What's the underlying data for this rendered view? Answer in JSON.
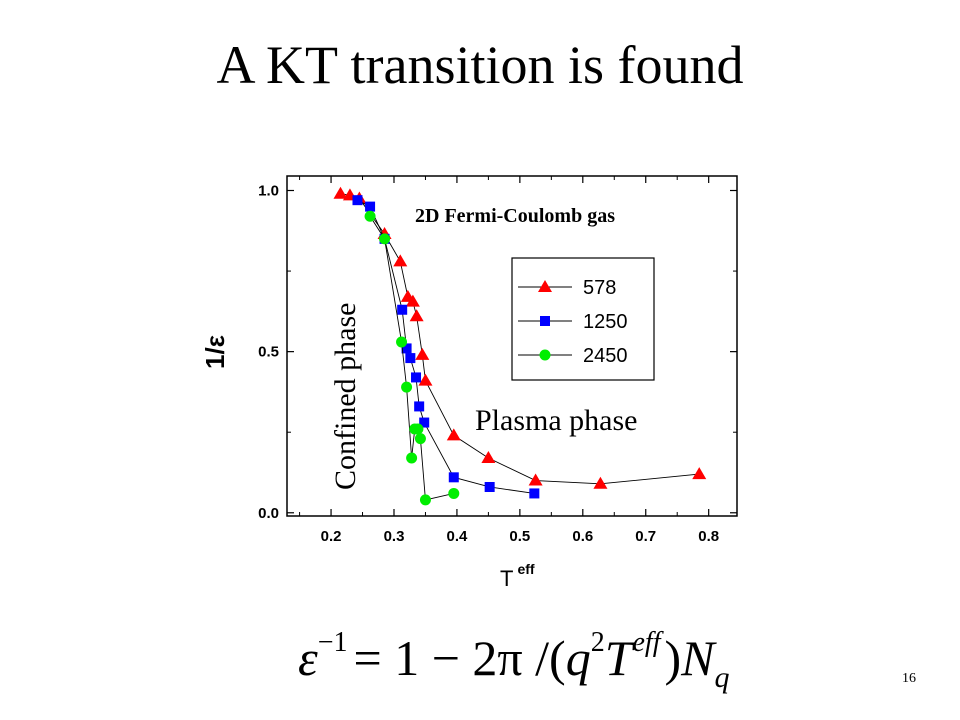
{
  "slide": {
    "title": "A KT transition is found",
    "page_number": "16"
  },
  "formula": {
    "epsilon": "ε",
    "epsilon_exp": "−1",
    "rhs_start": "= 1 − 2π /(",
    "q": "q",
    "q_exp": "2",
    "T": "T",
    "T_sup": "eff",
    "close": ")",
    "N": "N",
    "N_sub": "q"
  },
  "chart_data": {
    "type": "scatter",
    "inner_title": "2D Fermi-Coulomb  gas",
    "xlabel": "T",
    "xlabel_sup": "eff",
    "ylabel": "1/ε",
    "xlim": [
      0.13,
      0.845
    ],
    "ylim": [
      -0.01,
      1.045
    ],
    "x_ticks": [
      "0.2",
      "0.3",
      "0.4",
      "0.5",
      "0.6",
      "0.7",
      "0.8"
    ],
    "x_tick_values": [
      0.2,
      0.3,
      0.4,
      0.5,
      0.6,
      0.7,
      0.8
    ],
    "y_ticks": [
      "0.0",
      "0.5",
      "1.0"
    ],
    "y_tick_values": [
      0.0,
      0.5,
      1.0
    ],
    "grid": false,
    "legend_position": "upper-right",
    "annotations": [
      {
        "text": "Confined phase",
        "rotation": "vertical"
      },
      {
        "text": "Plasma phase"
      }
    ],
    "series": [
      {
        "name": "578",
        "marker": "triangle",
        "color": "#ff0000",
        "x": [
          0.215,
          0.23,
          0.245,
          0.285,
          0.31,
          0.322,
          0.33,
          0.336,
          0.345,
          0.35,
          0.395,
          0.45,
          0.525,
          0.628,
          0.785
        ],
        "y": [
          0.99,
          0.985,
          0.975,
          0.865,
          0.78,
          0.67,
          0.655,
          0.61,
          0.49,
          0.41,
          0.24,
          0.17,
          0.1,
          0.09,
          0.12
        ]
      },
      {
        "name": "1250",
        "marker": "square",
        "color": "#0000ff",
        "x": [
          0.242,
          0.262,
          0.285,
          0.313,
          0.32,
          0.326,
          0.335,
          0.34,
          0.348,
          0.395,
          0.452,
          0.523
        ],
        "y": [
          0.97,
          0.95,
          0.85,
          0.63,
          0.51,
          0.48,
          0.42,
          0.33,
          0.28,
          0.11,
          0.08,
          0.06
        ]
      },
      {
        "name": "2450",
        "marker": "circle",
        "color": "#00ee00",
        "x": [
          0.262,
          0.285,
          0.312,
          0.32,
          0.328,
          0.333,
          0.338,
          0.342,
          0.35,
          0.395
        ],
        "y": [
          0.92,
          0.85,
          0.53,
          0.39,
          0.17,
          0.26,
          0.26,
          0.23,
          0.04,
          0.06
        ]
      }
    ]
  }
}
